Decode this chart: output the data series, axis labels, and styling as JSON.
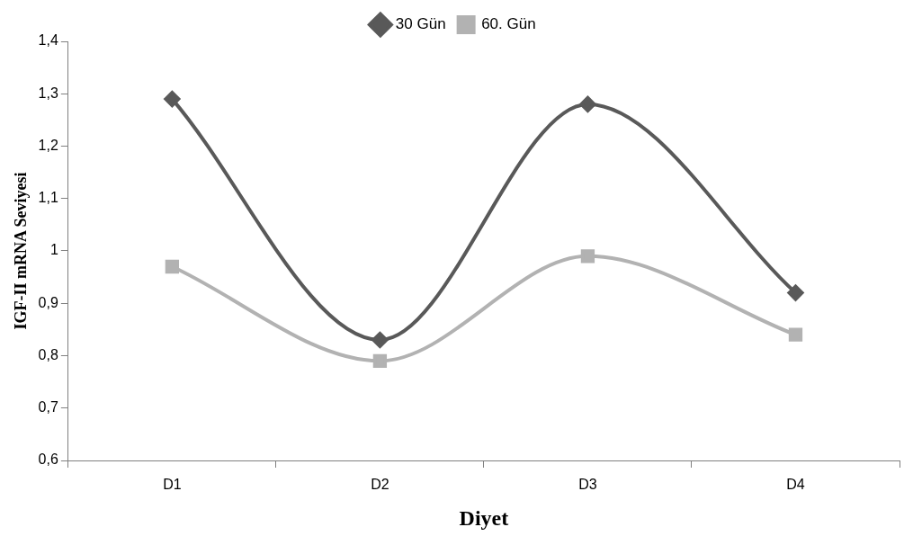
{
  "chart_data": {
    "type": "line",
    "xlabel": "Diyet",
    "ylabel": "IGF-II mRNA Seviyesi",
    "categories": [
      "D1",
      "D2",
      "D3",
      "D4"
    ],
    "series": [
      {
        "name": "30 Gün",
        "color": "#595959",
        "marker": "diamond",
        "values": [
          1.29,
          0.83,
          1.28,
          0.92
        ]
      },
      {
        "name": "60. Gün",
        "color": "#b2b2b2",
        "marker": "square",
        "values": [
          0.97,
          0.79,
          0.99,
          0.84
        ]
      }
    ],
    "ylim": [
      0.6,
      1.4
    ],
    "yticks": [
      {
        "value": 0.6,
        "label": "0,6"
      },
      {
        "value": 0.7,
        "label": "0,7"
      },
      {
        "value": 0.8,
        "label": "0,8"
      },
      {
        "value": 0.9,
        "label": "0,9"
      },
      1,
      {
        "value": 1.1,
        "label": "1,1"
      },
      {
        "value": 1.2,
        "label": "1,2"
      },
      {
        "value": 1.3,
        "label": "1,3"
      },
      {
        "value": 1.4,
        "label": "1,4"
      }
    ],
    "grid": false,
    "legend": "top",
    "line_style": "solid"
  }
}
